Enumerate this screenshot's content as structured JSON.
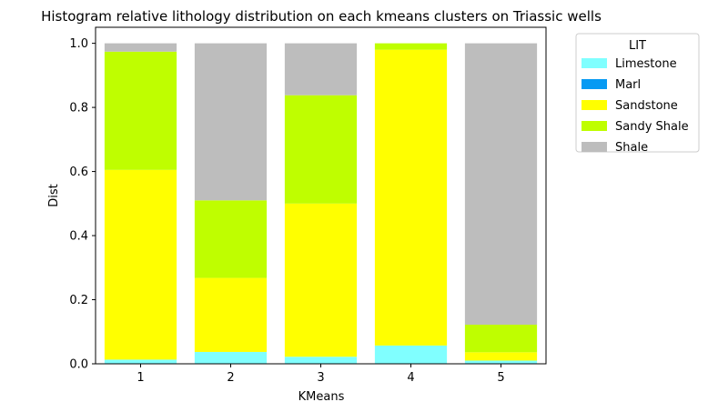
{
  "chart_data": {
    "type": "bar",
    "stacked": true,
    "title": "Histogram relative lithology distribution on each kmeans clusters on Triassic wells",
    "xlabel": "KMeans",
    "ylabel": "Dist",
    "categories": [
      "1",
      "2",
      "3",
      "4",
      "5"
    ],
    "ylim": [
      0,
      1.05
    ],
    "yticks": [
      "0.0",
      "0.2",
      "0.4",
      "0.6",
      "0.8",
      "1.0"
    ],
    "grid": false,
    "legend": {
      "title": "LIT",
      "position": "outside-top-right"
    },
    "series": [
      {
        "name": "Limestone",
        "color": "#80ffff",
        "values": [
          0.013,
          0.037,
          0.022,
          0.057,
          0.01
        ]
      },
      {
        "name": "Marl",
        "color": "#069af3",
        "values": [
          0.0,
          0.0,
          0.0,
          0.0,
          0.0
        ]
      },
      {
        "name": "Sandstone",
        "color": "#ffff00",
        "values": [
          0.592,
          0.231,
          0.478,
          0.923,
          0.026
        ]
      },
      {
        "name": "Sandy Shale",
        "color": "#bffe00",
        "values": [
          0.369,
          0.242,
          0.338,
          0.02,
          0.086
        ]
      },
      {
        "name": "Shale",
        "color": "#bdbdbd",
        "values": [
          0.026,
          0.49,
          0.162,
          0.0,
          0.878
        ]
      }
    ]
  }
}
